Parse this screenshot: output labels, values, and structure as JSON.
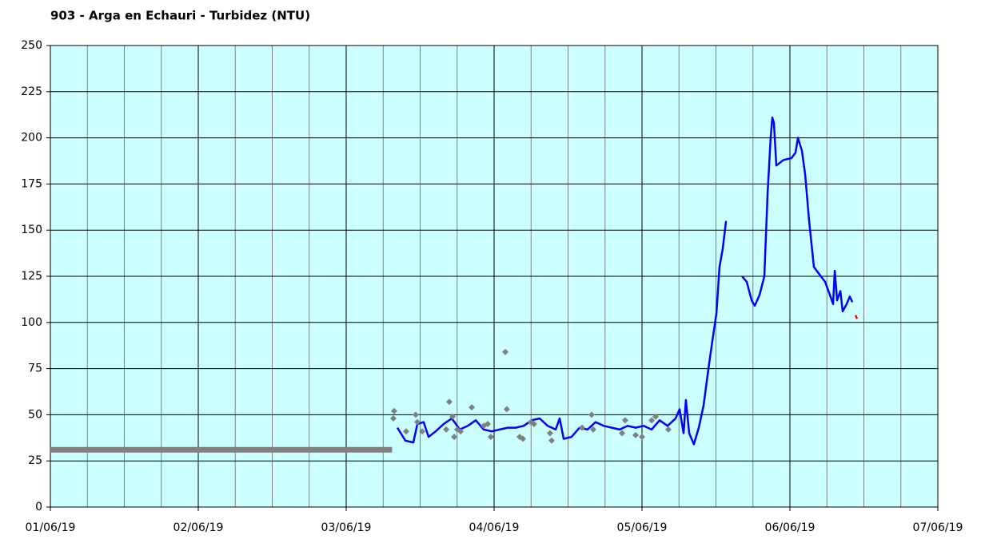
{
  "chart_data": {
    "type": "line",
    "title": "903 - Arga en Echauri - Turbidez (NTU)",
    "xlim": [
      0,
      6
    ],
    "xticks": [
      {
        "value": 0,
        "label": "01/06/19"
      },
      {
        "value": 1,
        "label": "02/06/19"
      },
      {
        "value": 2,
        "label": "03/06/19"
      },
      {
        "value": 3,
        "label": "04/06/19"
      },
      {
        "value": 4,
        "label": "05/06/19"
      },
      {
        "value": 5,
        "label": "06/06/19"
      },
      {
        "value": 6,
        "label": "07/06/19"
      }
    ],
    "xminorticks": [
      0.25,
      0.5,
      0.75,
      1.25,
      1.5,
      1.75,
      2.25,
      2.5,
      2.75,
      3.25,
      3.5,
      3.75,
      4.25,
      4.5,
      4.75,
      5.25,
      5.5,
      5.75
    ],
    "ylim": [
      0,
      250
    ],
    "yticks": [
      0,
      25,
      50,
      75,
      100,
      125,
      150,
      175,
      200,
      225,
      250
    ],
    "grid": true,
    "background": "#ccffff",
    "series": [
      {
        "type": "line",
        "color": "#808080",
        "linewidth": 7,
        "x": [
          0,
          2.31
        ],
        "values": [
          31,
          31
        ]
      },
      {
        "type": "line",
        "color": "#0000ff",
        "linewidth": 2.5,
        "x": [
          2.346,
          2.4,
          2.454,
          2.481,
          2.524,
          2.557,
          2.605,
          2.659,
          2.714,
          2.768,
          2.822,
          2.876,
          2.93,
          2.984,
          3.038,
          3.092,
          3.146,
          3.2,
          3.254,
          3.308,
          3.362,
          3.416,
          3.443,
          3.47,
          3.524,
          3.578,
          3.632,
          3.686,
          3.741,
          3.795,
          3.849,
          3.903,
          3.957,
          4.011,
          4.065,
          4.119,
          4.173,
          4.227,
          4.254,
          4.281,
          4.297,
          4.319,
          4.351,
          4.384,
          4.416,
          4.449,
          4.47,
          4.503,
          4.524,
          4.546,
          4.568,
          4.62,
          4.676,
          4.708,
          4.741,
          4.762,
          4.795,
          4.827,
          4.849,
          4.87,
          4.881,
          4.892,
          4.908,
          4.957,
          5.011,
          5.038,
          5.054,
          5.081,
          5.103,
          5.13,
          5.162,
          5.2,
          5.238,
          5.27,
          5.292,
          5.303,
          5.319,
          5.341,
          5.357,
          5.384,
          5.405,
          5.422
        ],
        "values": [
          43,
          36,
          35,
          45,
          46,
          38,
          41,
          45,
          48,
          42,
          44,
          47,
          42,
          41,
          42,
          43,
          43,
          44,
          47,
          48,
          44,
          42,
          48,
          37,
          38,
          43,
          42,
          46,
          44,
          43,
          42,
          44,
          43,
          44,
          42,
          47,
          44,
          48,
          53,
          40,
          58,
          40,
          34,
          43,
          55,
          75,
          87,
          105,
          130,
          140,
          155,
          null,
          125,
          122,
          112,
          109,
          115,
          125,
          170,
          200,
          211,
          208,
          185,
          188,
          189,
          192,
          200,
          193,
          180,
          155,
          130,
          126,
          122,
          115,
          110,
          128,
          112,
          117,
          106,
          110,
          114,
          111
        ]
      },
      {
        "type": "scatter",
        "color": "#808080",
        "x": [
          2.324,
          2.319,
          2.405,
          2.47,
          2.481,
          2.514,
          2.676,
          2.697,
          2.719,
          2.73,
          2.751,
          2.773,
          2.849,
          2.93,
          2.957,
          2.978,
          3.076,
          3.086,
          3.173,
          3.195,
          3.249,
          3.27,
          3.378,
          3.389,
          3.595,
          3.659,
          3.67,
          3.886,
          3.865,
          3.957,
          4.0,
          4.065,
          4.092,
          4.178
        ],
        "values": [
          52,
          48,
          41,
          50,
          46,
          41,
          42,
          57,
          49,
          38,
          42,
          41,
          54,
          44,
          45,
          38,
          84,
          53,
          38,
          37,
          46,
          45,
          40,
          36,
          43,
          50,
          42,
          47,
          40,
          39,
          38,
          47,
          49,
          42
        ]
      },
      {
        "type": "line",
        "color": "#ff0000",
        "linewidth": 2.5,
        "x": [
          5.443,
          5.454
        ],
        "values": [
          104,
          102
        ]
      }
    ]
  }
}
